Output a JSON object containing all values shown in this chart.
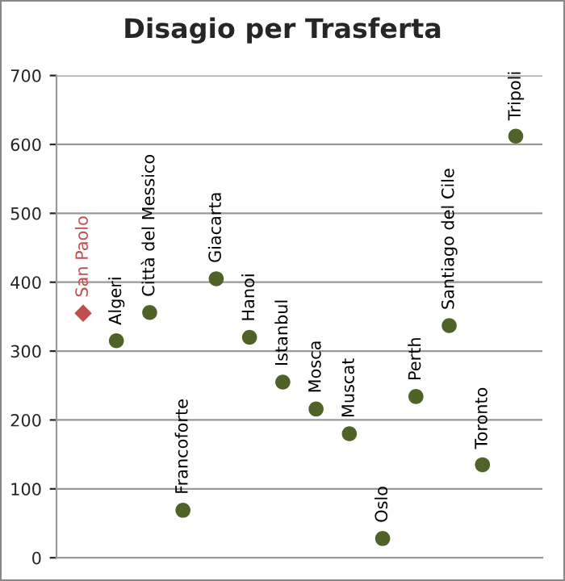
{
  "chart_data": {
    "type": "scatter",
    "title": "Disagio per Trasferta",
    "categories": [
      "San Paolo",
      "Algeri",
      "Città del Messico",
      "Francoforte",
      "Giacarta",
      "Hanoi",
      "Istanbul",
      "Mosca",
      "Muscat",
      "Oslo",
      "Perth",
      "Santiago del Cile",
      "Toronto",
      "Tripoli"
    ],
    "series": [
      {
        "color": "#c0504d",
        "marker": "diamond",
        "values": [
          355,
          null,
          null,
          null,
          null,
          null,
          null,
          null,
          null,
          null,
          null,
          null,
          null,
          null
        ]
      },
      {
        "color": "#4f6228",
        "marker": "circle",
        "values": [
          null,
          315,
          356,
          69,
          405,
          320,
          255,
          216,
          180,
          28,
          234,
          337,
          135,
          612
        ]
      }
    ],
    "ylim": [
      0,
      700
    ],
    "yticks": [
      0,
      100,
      200,
      300,
      400,
      500,
      600,
      700
    ],
    "grid": "y",
    "tick_labels": "y"
  }
}
